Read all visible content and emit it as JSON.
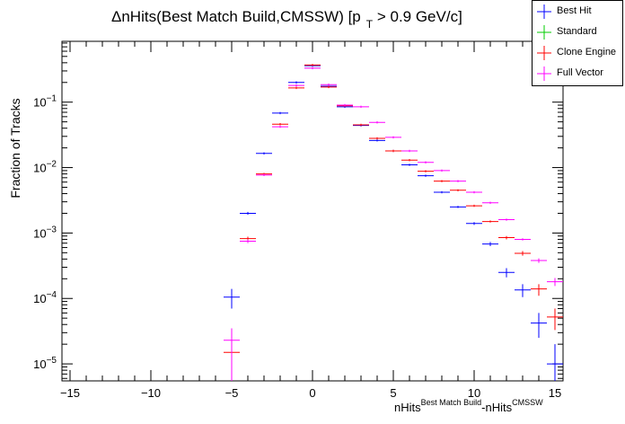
{
  "chart_data": {
    "type": "scatter",
    "title_main": "ΔnHits(Best Match Build,CMSSW) [p",
    "title_sub": "T",
    "title_tail": " > 0.9 GeV/c]",
    "ylabel": "Fraction of Tracks",
    "xlabel_main1": "nHits",
    "xlabel_sup1": "Best Match Build",
    "xlabel_main2": "-nHits",
    "xlabel_sup2": "CMSSW",
    "xlim": [
      -15.5,
      15.5
    ],
    "ylim": [
      5.5e-06,
      0.85
    ],
    "log_y": true,
    "x_ticks": [
      -15,
      -10,
      -5,
      0,
      5,
      10,
      15
    ],
    "y_ticks": [
      {
        "value": 1e-05,
        "base": "10",
        "exp": "−5"
      },
      {
        "value": 0.0001,
        "base": "10",
        "exp": "−4"
      },
      {
        "value": 0.001,
        "base": "10",
        "exp": "−3"
      },
      {
        "value": 0.01,
        "base": "10",
        "exp": "−2"
      },
      {
        "value": 0.1,
        "base": "10",
        "exp": "−1"
      }
    ],
    "series": [
      {
        "name": "Best Hit",
        "color": "#0000ff",
        "points": [
          {
            "x": -5,
            "y": 0.000105,
            "lo": 7e-05,
            "hi": 0.00014
          },
          {
            "x": -4,
            "y": 0.002,
            "lo": 0.0019,
            "hi": 0.0021
          },
          {
            "x": -3,
            "y": 0.0165
          },
          {
            "x": -2,
            "y": 0.068
          },
          {
            "x": -1,
            "y": 0.2
          },
          {
            "x": 0,
            "y": 0.36
          },
          {
            "x": 1,
            "y": 0.175
          },
          {
            "x": 2,
            "y": 0.085
          },
          {
            "x": 3,
            "y": 0.044
          },
          {
            "x": 4,
            "y": 0.026
          },
          {
            "x": 5,
            "y": 0.018
          },
          {
            "x": 6,
            "y": 0.011
          },
          {
            "x": 7,
            "y": 0.0075
          },
          {
            "x": 8,
            "y": 0.0042
          },
          {
            "x": 9,
            "y": 0.0025
          },
          {
            "x": 10,
            "y": 0.0014,
            "lo": 0.00133,
            "hi": 0.00147
          },
          {
            "x": 11,
            "y": 0.00068,
            "lo": 0.00063,
            "hi": 0.00073
          },
          {
            "x": 12,
            "y": 0.00025,
            "lo": 0.00021,
            "hi": 0.00029
          },
          {
            "x": 13,
            "y": 0.000135,
            "lo": 0.000105,
            "hi": 0.000165
          },
          {
            "x": 14,
            "y": 4.2e-05,
            "lo": 2.5e-05,
            "hi": 6e-05
          },
          {
            "x": 15,
            "y": 1e-05,
            "lo": 5.5e-06,
            "hi": 2e-05
          }
        ]
      },
      {
        "name": "Standard",
        "color": "#00cc00",
        "points": []
      },
      {
        "name": "Clone Engine",
        "color": "#ff0000",
        "points": [
          {
            "x": -5,
            "y": 1.5e-05,
            "lo": 5.5e-06,
            "hi": 2.5e-05
          },
          {
            "x": -4,
            "y": 0.00082,
            "lo": 0.00076,
            "hi": 0.00088
          },
          {
            "x": -3,
            "y": 0.008
          },
          {
            "x": -2,
            "y": 0.046
          },
          {
            "x": -1,
            "y": 0.165
          },
          {
            "x": 0,
            "y": 0.37
          },
          {
            "x": 1,
            "y": 0.17
          },
          {
            "x": 2,
            "y": 0.088
          },
          {
            "x": 3,
            "y": 0.045
          },
          {
            "x": 4,
            "y": 0.028
          },
          {
            "x": 5,
            "y": 0.018
          },
          {
            "x": 6,
            "y": 0.013
          },
          {
            "x": 7,
            "y": 0.0088
          },
          {
            "x": 8,
            "y": 0.0062
          },
          {
            "x": 9,
            "y": 0.0045
          },
          {
            "x": 10,
            "y": 0.0026
          },
          {
            "x": 11,
            "y": 0.0015
          },
          {
            "x": 12,
            "y": 0.00085,
            "lo": 0.0008,
            "hi": 0.0009
          },
          {
            "x": 13,
            "y": 0.00049,
            "lo": 0.00045,
            "hi": 0.00053
          },
          {
            "x": 14,
            "y": 0.00014,
            "lo": 0.00011,
            "hi": 0.000165
          },
          {
            "x": 15,
            "y": 5.2e-05,
            "lo": 3.3e-05,
            "hi": 7e-05
          }
        ]
      },
      {
        "name": "Full Vector",
        "color": "#ff00ff",
        "points": [
          {
            "x": -5,
            "y": 2.3e-05,
            "lo": 5.5e-06,
            "hi": 3.5e-05
          },
          {
            "x": -4,
            "y": 0.00075,
            "lo": 0.0007,
            "hi": 0.0008
          },
          {
            "x": -3,
            "y": 0.0077
          },
          {
            "x": -2,
            "y": 0.042
          },
          {
            "x": -1,
            "y": 0.18
          },
          {
            "x": 0,
            "y": 0.33
          },
          {
            "x": 1,
            "y": 0.185
          },
          {
            "x": 2,
            "y": 0.09
          },
          {
            "x": 3,
            "y": 0.085
          },
          {
            "x": 4,
            "y": 0.049
          },
          {
            "x": 5,
            "y": 0.029
          },
          {
            "x": 6,
            "y": 0.018
          },
          {
            "x": 7,
            "y": 0.012
          },
          {
            "x": 8,
            "y": 0.009
          },
          {
            "x": 9,
            "y": 0.0062
          },
          {
            "x": 10,
            "y": 0.0042
          },
          {
            "x": 11,
            "y": 0.0029
          },
          {
            "x": 12,
            "y": 0.0016
          },
          {
            "x": 13,
            "y": 0.0008
          },
          {
            "x": 14,
            "y": 0.00038,
            "lo": 0.00035,
            "hi": 0.00041
          },
          {
            "x": 15,
            "y": 0.00018,
            "lo": 0.000155,
            "hi": 0.000205
          }
        ]
      }
    ],
    "legend_position": "top-right"
  }
}
